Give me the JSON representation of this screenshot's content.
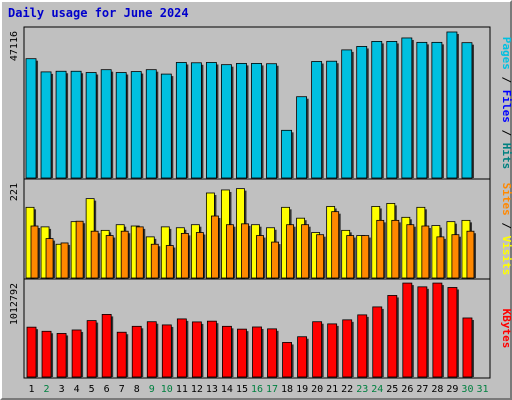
{
  "title": "Daily usage for June 2024",
  "colors": {
    "pages": "#00c0e0",
    "files": "#0000ff",
    "hits": "#008080",
    "sites": "#ff8800",
    "visits": "#ffff00",
    "kbytes": "#ff0000",
    "weekend_day": "#008040",
    "weekday": "#000000"
  },
  "chart_data": [
    {
      "type": "bar",
      "panel": "hits",
      "categories": [
        "1",
        "2",
        "3",
        "4",
        "5",
        "6",
        "7",
        "8",
        "9",
        "10",
        "11",
        "12",
        "13",
        "14",
        "15",
        "16",
        "17",
        "18",
        "19",
        "20",
        "21",
        "22",
        "23",
        "24",
        "25",
        "26",
        "27",
        "28",
        "29",
        "30",
        "31"
      ],
      "ymax_label": "47116",
      "ylim": [
        0,
        47116
      ],
      "legend": [
        "Pages",
        "Files",
        "Hits"
      ],
      "series": [
        {
          "name": "Hits",
          "values": [
            38300,
            34100,
            34300,
            34300,
            33900,
            34800,
            33900,
            34200,
            34800,
            33400,
            37100,
            37000,
            37100,
            36400,
            36800,
            36800,
            36700,
            15500,
            26200,
            37400,
            37500,
            41100,
            42200,
            43800,
            43800,
            44900,
            43500,
            43500,
            46800,
            43400,
            0
          ]
        }
      ]
    },
    {
      "type": "bar",
      "panel": "sites-visits",
      "categories": [
        "1",
        "2",
        "3",
        "4",
        "5",
        "6",
        "7",
        "8",
        "9",
        "10",
        "11",
        "12",
        "13",
        "14",
        "15",
        "16",
        "17",
        "18",
        "19",
        "20",
        "21",
        "22",
        "23",
        "24",
        "25",
        "26",
        "27",
        "28",
        "29",
        "30",
        "31"
      ],
      "ymax_label": "221",
      "ylim": [
        0,
        221
      ],
      "legend": [
        "Sites",
        "Visits"
      ],
      "series": [
        {
          "name": "Visits",
          "values": [
            165,
            120,
            80,
            132,
            185,
            112,
            125,
            122,
            97,
            120,
            118,
            125,
            198,
            205,
            208,
            125,
            118,
            165,
            140,
            107,
            167,
            112,
            100,
            167,
            174,
            142,
            165,
            123,
            132,
            135,
            0
          ]
        },
        {
          "name": "Sites",
          "values": [
            122,
            93,
            83,
            133,
            110,
            100,
            110,
            120,
            80,
            77,
            105,
            107,
            145,
            125,
            127,
            100,
            85,
            125,
            125,
            102,
            155,
            100,
            100,
            135,
            135,
            125,
            122,
            97,
            102,
            110,
            0
          ]
        }
      ]
    },
    {
      "type": "bar",
      "panel": "kbytes",
      "categories": [
        "1",
        "2",
        "3",
        "4",
        "5",
        "6",
        "7",
        "8",
        "9",
        "10",
        "11",
        "12",
        "13",
        "14",
        "15",
        "16",
        "17",
        "18",
        "19",
        "20",
        "21",
        "22",
        "23",
        "24",
        "25",
        "26",
        "27",
        "28",
        "29",
        "30",
        "31"
      ],
      "ymax_label": "1012792",
      "ylim": [
        0,
        1012792
      ],
      "legend": [
        "KBytes"
      ],
      "series": [
        {
          "name": "KBytes",
          "values": [
            542000,
            498000,
            475000,
            512000,
            612000,
            678000,
            488000,
            551000,
            600000,
            566000,
            630000,
            598000,
            606000,
            551000,
            521000,
            544000,
            524000,
            379000,
            440000,
            600000,
            577000,
            620000,
            673000,
            758000,
            880000,
            1012000,
            972000,
            1012000,
            965000,
            640000,
            0
          ]
        }
      ]
    }
  ]
}
